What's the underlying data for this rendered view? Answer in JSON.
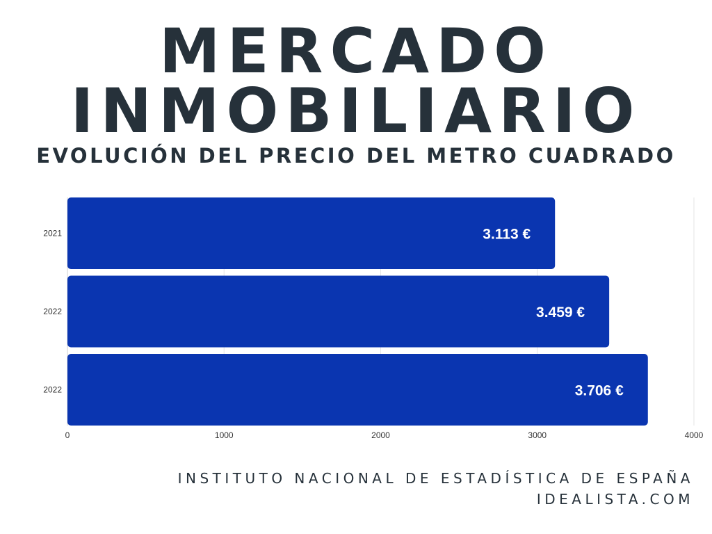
{
  "header": {
    "title_line1": "MERCADO",
    "title_line2": "INMOBILIARIO",
    "subtitle": "EVOLUCIÓN DEL PRECIO DEL METRO CUADRADO"
  },
  "footer": {
    "source_line1": "INSTITUTO NACIONAL DE ESTADÍSTICA DE ESPAÑA",
    "source_line2": "IDEALISTA.COM"
  },
  "colors": {
    "bar": "#0a35b0",
    "title": "#26313a",
    "grid": "#e5e5e5",
    "label": "#ffffff"
  },
  "chart_data": {
    "type": "bar",
    "orientation": "horizontal",
    "categories": [
      "2021",
      "2022",
      "2022"
    ],
    "values": [
      3113,
      3459,
      3706
    ],
    "value_labels": [
      "3.113 €",
      "3.459 €",
      "3.706 €"
    ],
    "xlim": [
      0,
      4000
    ],
    "xticks": [
      "0",
      "1000",
      "2000",
      "3000",
      "4000"
    ],
    "grid": true,
    "legend": "none"
  }
}
